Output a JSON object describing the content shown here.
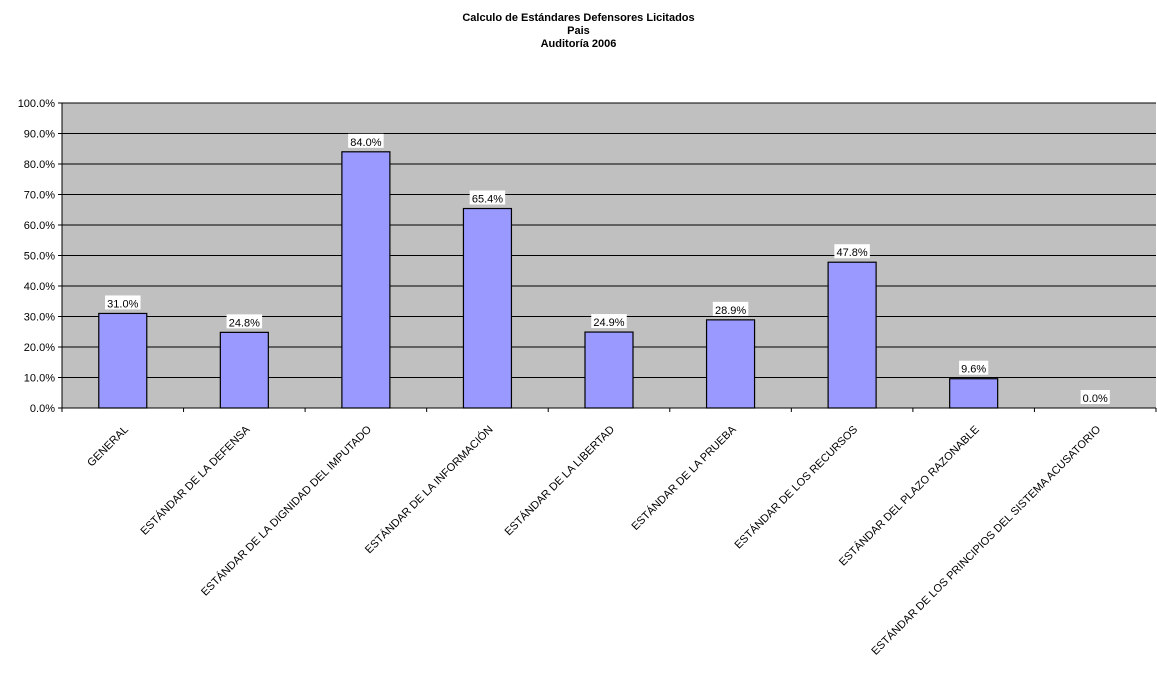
{
  "chart_data": {
    "type": "bar",
    "title": "Calculo de Estándares Defensores Licitados",
    "subtitle_lines": [
      "Pais",
      "Auditoría 2006"
    ],
    "xlabel": "",
    "ylabel": "",
    "ylim": [
      0,
      100
    ],
    "y_ticks": [
      "0.0%",
      "10.0%",
      "20.0%",
      "30.0%",
      "40.0%",
      "50.0%",
      "60.0%",
      "70.0%",
      "80.0%",
      "90.0%",
      "100.0%"
    ],
    "categories": [
      "GENERAL",
      "ESTÁNDAR DE LA DEFENSA",
      "ESTÁNDAR DE LA DIGNIDAD DEL IMPUTADO",
      "ESTÁNDAR DE LA INFORMACIÓN",
      "ESTÁNDAR DE LA LIBERTAD",
      "ESTÁNDAR DE LA PRUEBA",
      "ESTÁNDAR DE LOS RECURSOS",
      "ESTÁNDAR DEL PLAZO RAZONABLE",
      "ESTÁNDAR DE LOS PRINCIPIOS DEL SISTEMA ACUSATORIO"
    ],
    "values": [
      31.0,
      24.8,
      84.0,
      65.4,
      24.9,
      28.9,
      47.8,
      9.6,
      0.0
    ],
    "data_labels": [
      "31.0%",
      "24.8%",
      "84.0%",
      "65.4%",
      "24.9%",
      "28.9%",
      "47.8%",
      "9.6%",
      "0.0%"
    ],
    "grid": true,
    "legend": "none",
    "colors": {
      "bar_fill": "#9999ff",
      "bar_stroke": "#000000",
      "plot_background": "#c0c0c0",
      "gridline": "#000000",
      "label_background": "#ffffff"
    }
  }
}
